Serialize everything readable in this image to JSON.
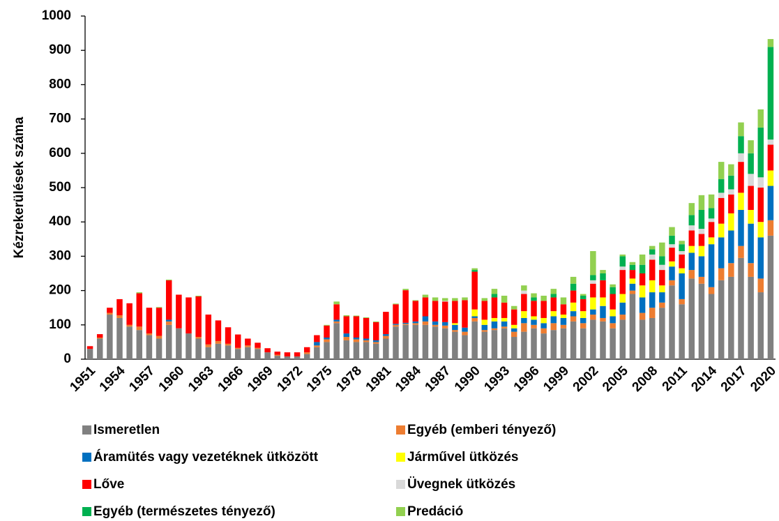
{
  "chart_data": {
    "type": "stacked_bar",
    "ylabel": "Kézrekerülések száma",
    "categories": [
      "1951",
      null,
      null,
      "1954",
      null,
      null,
      "1957",
      null,
      null,
      "1960",
      null,
      null,
      "1963",
      null,
      null,
      "1966",
      null,
      null,
      "1969",
      null,
      null,
      "1972",
      null,
      null,
      "1975",
      null,
      null,
      "1978",
      null,
      null,
      "1981",
      null,
      null,
      "1984",
      null,
      null,
      "1987",
      null,
      null,
      "1990",
      null,
      null,
      "1993",
      null,
      null,
      "1996",
      null,
      null,
      "1999",
      null,
      null,
      "2002",
      null,
      null,
      "2005",
      null,
      null,
      "2008",
      null,
      null,
      "2011",
      null,
      null,
      "2014",
      null,
      null,
      "2017",
      null,
      null,
      "2020"
    ],
    "ylim": [
      0,
      1000
    ],
    "yticks": [
      0,
      100,
      200,
      300,
      400,
      500,
      600,
      700,
      800,
      900,
      1000
    ],
    "series": [
      {
        "name": "Ismeretlen",
        "color": "#808080",
        "values": [
          30,
          60,
          130,
          120,
          95,
          85,
          70,
          60,
          100,
          90,
          75,
          60,
          35,
          45,
          40,
          30,
          35,
          30,
          20,
          10,
          8,
          8,
          15,
          35,
          50,
          105,
          55,
          50,
          50,
          45,
          60,
          95,
          100,
          100,
          100,
          95,
          90,
          80,
          70,
          110,
          80,
          85,
          90,
          65,
          80,
          90,
          75,
          85,
          90,
          110,
          90,
          115,
          110,
          90,
          115,
          190,
          115,
          120,
          150,
          215,
          160,
          235,
          220,
          190,
          230,
          240,
          295,
          240,
          195,
          360
        ]
      },
      {
        "name": "Egyéb (emberi tényező)",
        "color": "#ed7d31",
        "values": [
          0,
          3,
          5,
          8,
          5,
          10,
          5,
          8,
          10,
          0,
          0,
          5,
          8,
          8,
          5,
          3,
          5,
          3,
          0,
          3,
          0,
          0,
          5,
          5,
          8,
          5,
          10,
          8,
          5,
          5,
          8,
          5,
          3,
          5,
          10,
          5,
          8,
          5,
          10,
          10,
          5,
          5,
          5,
          15,
          25,
          10,
          15,
          20,
          10,
          15,
          15,
          15,
          10,
          15,
          15,
          10,
          20,
          30,
          15,
          15,
          15,
          25,
          20,
          20,
          35,
          40,
          35,
          40,
          40,
          45
        ]
      },
      {
        "name": "Áramütés vagy vezetéknek ütközött",
        "color": "#0070c0",
        "values": [
          0,
          0,
          0,
          0,
          0,
          0,
          0,
          0,
          5,
          0,
          0,
          0,
          0,
          0,
          0,
          0,
          0,
          0,
          0,
          0,
          0,
          0,
          0,
          10,
          5,
          5,
          10,
          5,
          5,
          5,
          5,
          3,
          3,
          5,
          15,
          10,
          10,
          15,
          12,
          5,
          15,
          20,
          15,
          10,
          15,
          15,
          15,
          20,
          20,
          15,
          15,
          15,
          35,
          20,
          35,
          20,
          45,
          45,
          30,
          40,
          75,
          50,
          60,
          125,
          90,
          95,
          105,
          115,
          120,
          100
        ]
      },
      {
        "name": "Járművel ütközés",
        "color": "#ffff00",
        "values": [
          0,
          0,
          0,
          0,
          0,
          0,
          0,
          0,
          0,
          0,
          0,
          0,
          0,
          0,
          0,
          0,
          0,
          0,
          0,
          0,
          0,
          0,
          0,
          0,
          0,
          0,
          0,
          0,
          0,
          0,
          0,
          0,
          0,
          0,
          0,
          0,
          0,
          5,
          0,
          20,
          15,
          10,
          10,
          10,
          20,
          10,
          15,
          15,
          10,
          25,
          20,
          35,
          25,
          20,
          25,
          15,
          35,
          35,
          20,
          15,
          15,
          20,
          30,
          20,
          40,
          50,
          50,
          40,
          45,
          45
        ]
      },
      {
        "name": "Lőve",
        "color": "#ff0000",
        "values": [
          8,
          10,
          15,
          47,
          63,
          97,
          75,
          82,
          115,
          98,
          105,
          118,
          87,
          60,
          48,
          39,
          20,
          15,
          12,
          9,
          12,
          12,
          15,
          20,
          35,
          45,
          50,
          62,
          60,
          53,
          65,
          57,
          95,
          60,
          55,
          60,
          60,
          65,
          80,
          110,
          55,
          60,
          45,
          45,
          50,
          45,
          50,
          40,
          30,
          35,
          35,
          40,
          50,
          45,
          70,
          25,
          35,
          60,
          45,
          40,
          40,
          45,
          35,
          45,
          75,
          55,
          90,
          70,
          100,
          75
        ]
      },
      {
        "name": "Üvegnek ütközés",
        "color": "#d9d9d9",
        "values": [
          0,
          0,
          0,
          0,
          0,
          0,
          0,
          0,
          0,
          0,
          0,
          0,
          0,
          0,
          0,
          0,
          0,
          0,
          0,
          0,
          0,
          0,
          0,
          0,
          0,
          0,
          0,
          0,
          0,
          0,
          0,
          0,
          0,
          0,
          0,
          0,
          2,
          0,
          0,
          0,
          0,
          0,
          0,
          0,
          10,
          0,
          0,
          0,
          0,
          0,
          0,
          10,
          0,
          0,
          10,
          0,
          0,
          15,
          15,
          10,
          10,
          15,
          15,
          10,
          15,
          15,
          25,
          35,
          30,
          15
        ]
      },
      {
        "name": "Egyéb (természetes tényező)",
        "color": "#00b050",
        "values": [
          0,
          0,
          0,
          0,
          0,
          0,
          0,
          0,
          0,
          0,
          0,
          0,
          0,
          0,
          0,
          0,
          0,
          0,
          0,
          0,
          0,
          0,
          0,
          0,
          0,
          0,
          0,
          0,
          0,
          0,
          0,
          0,
          0,
          0,
          0,
          0,
          0,
          0,
          0,
          5,
          0,
          10,
          0,
          0,
          0,
          10,
          0,
          10,
          0,
          20,
          10,
          15,
          20,
          20,
          30,
          15,
          25,
          15,
          25,
          25,
          20,
          30,
          55,
          30,
          40,
          40,
          50,
          60,
          145,
          270
        ]
      },
      {
        "name": "Predáció",
        "color": "#92d050",
        "values": [
          0,
          0,
          0,
          0,
          0,
          3,
          0,
          2,
          2,
          0,
          0,
          2,
          0,
          0,
          0,
          0,
          0,
          0,
          0,
          0,
          0,
          0,
          0,
          0,
          2,
          8,
          3,
          2,
          2,
          2,
          0,
          2,
          4,
          2,
          8,
          10,
          8,
          8,
          8,
          5,
          8,
          15,
          20,
          10,
          15,
          12,
          15,
          15,
          20,
          20,
          5,
          70,
          10,
          8,
          5,
          8,
          30,
          10,
          40,
          25,
          10,
          35,
          43,
          40,
          50,
          33,
          40,
          38,
          53,
          23
        ]
      }
    ]
  }
}
